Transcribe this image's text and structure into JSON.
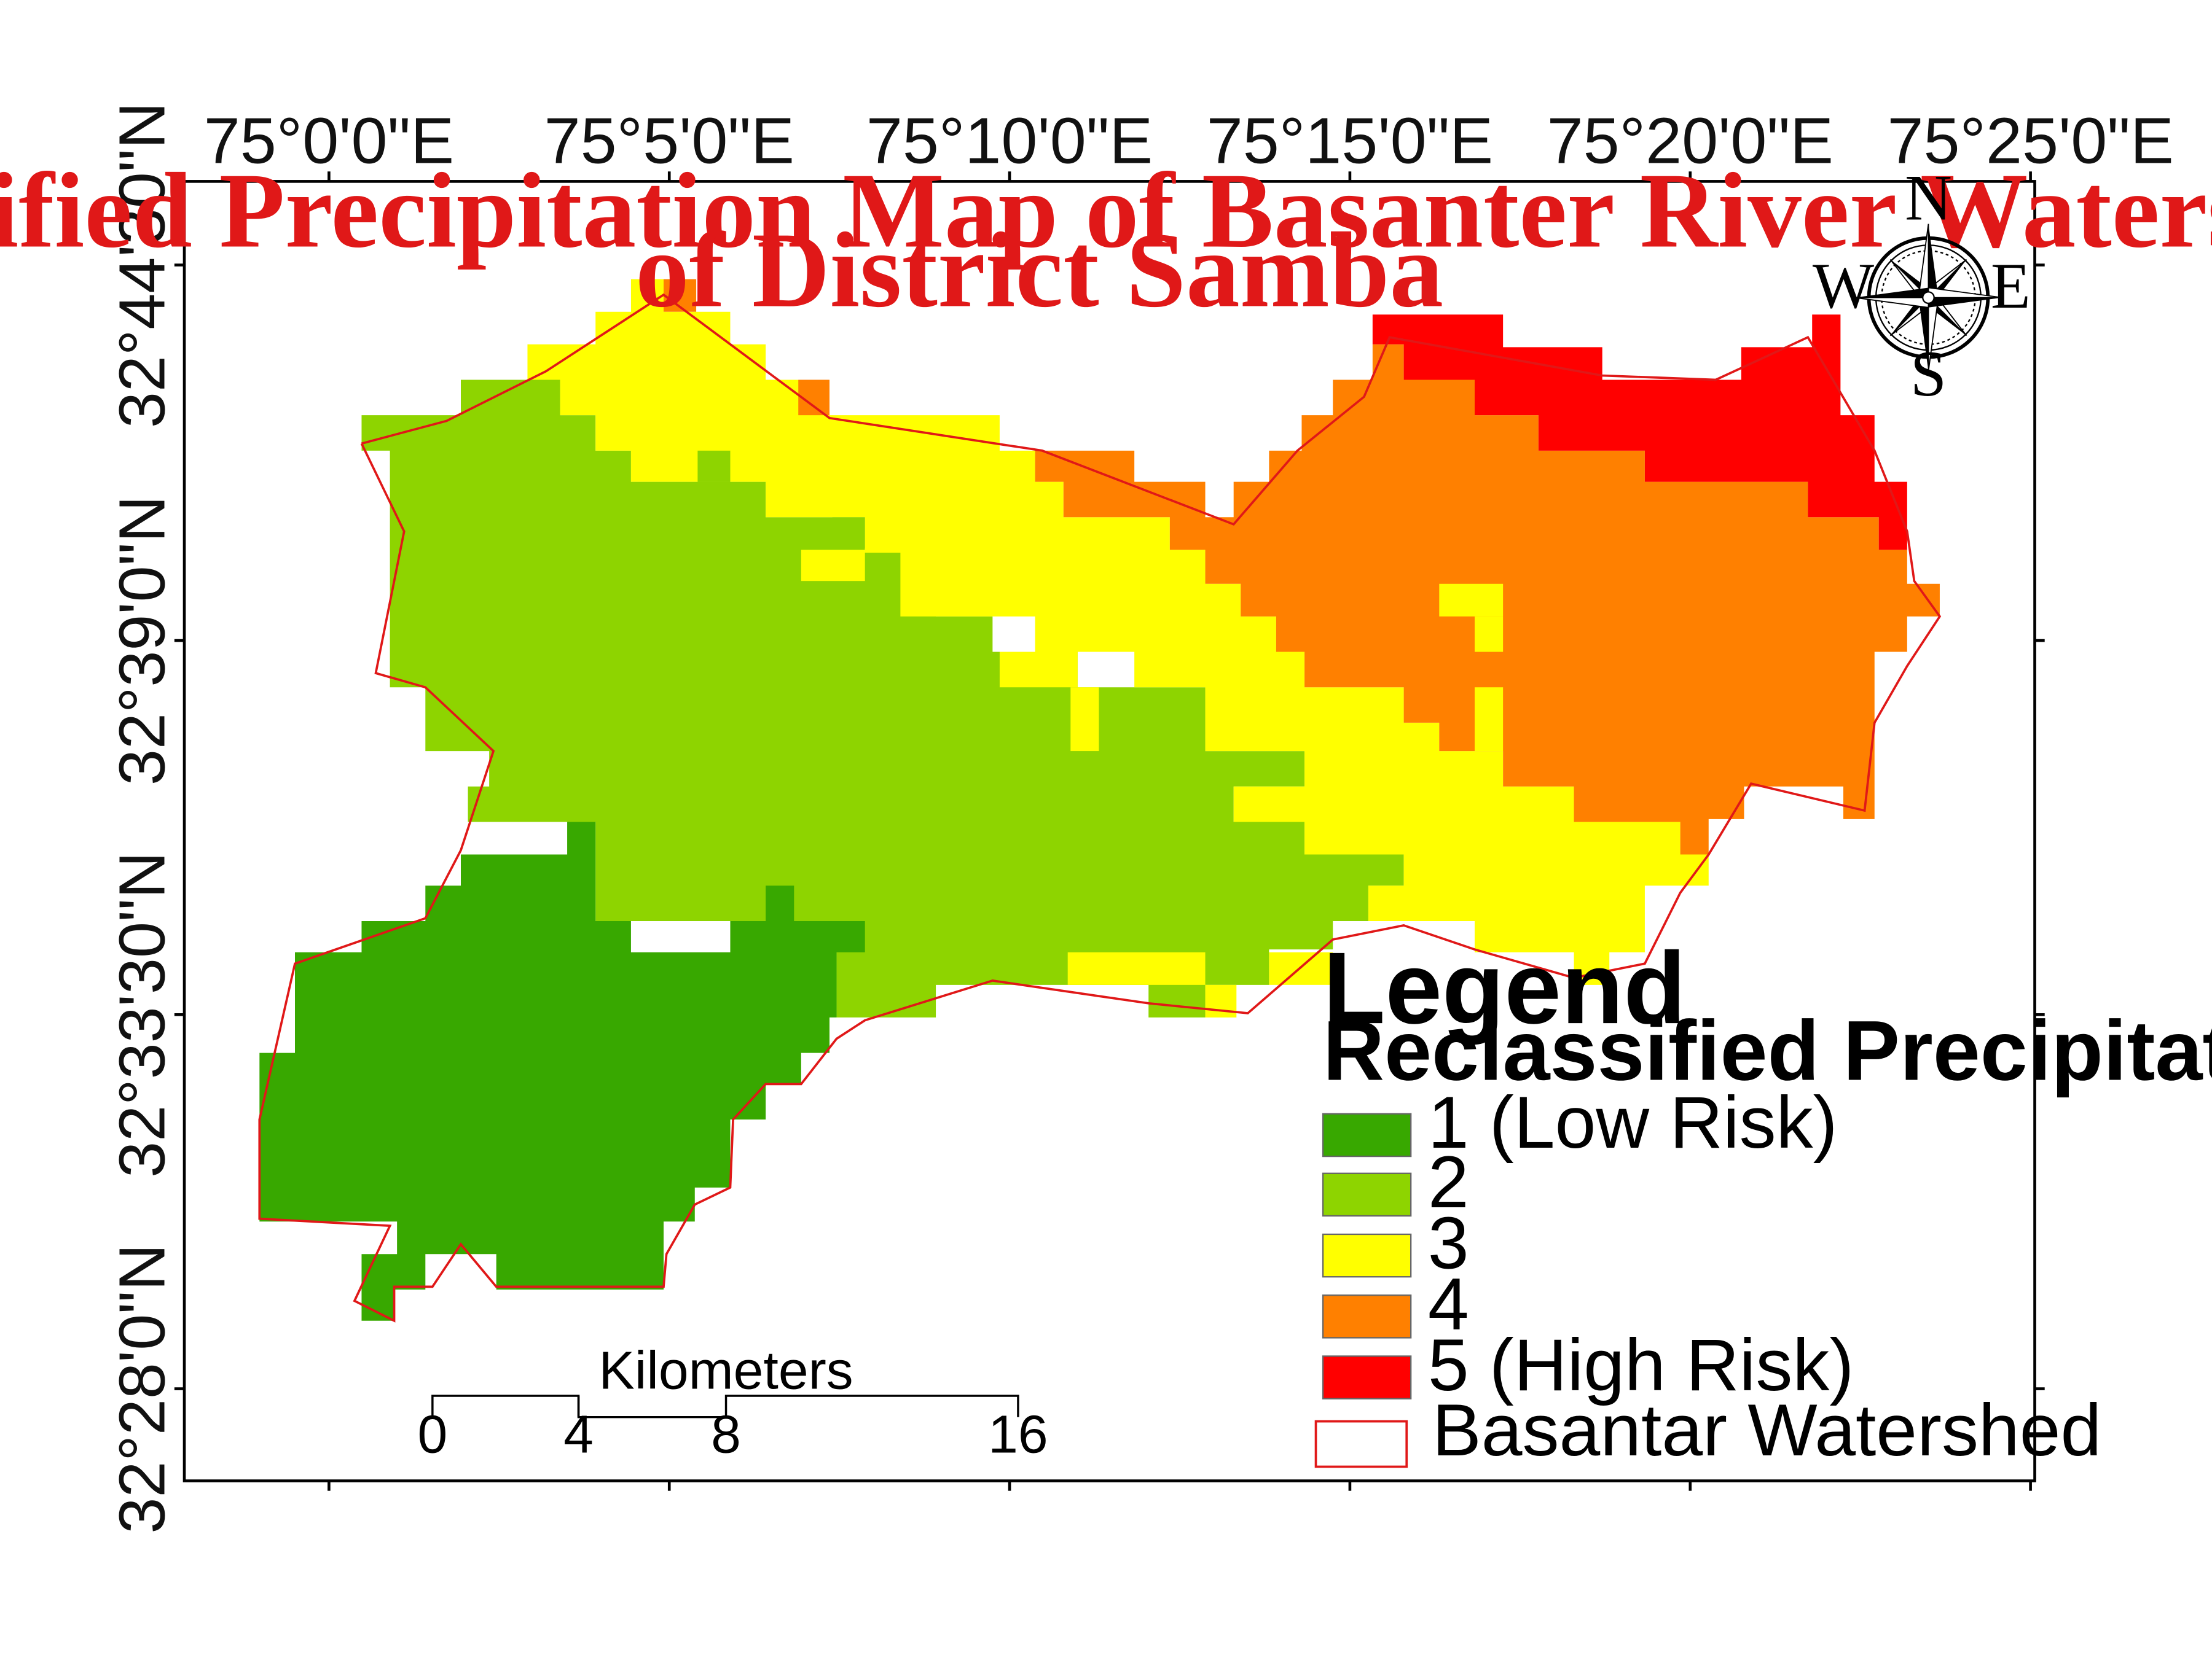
{
  "title": {
    "line1": "Reclassified Precipitation Map of Basanter River Watershed",
    "line2": "of District Samba"
  },
  "graticule": {
    "longitudes": [
      "75°0'0\"E",
      "75°5'0\"E",
      "75°10'0\"E",
      "75°15'0\"E",
      "75°20'0\"E",
      "75°25'0\"E"
    ],
    "latitudes": [
      "32°44'30\"N",
      "32°39'0\"N",
      "32°33'30\"N",
      "32°28'0\"N"
    ]
  },
  "compass": {
    "north": "N",
    "south": "S",
    "east": "E",
    "west": "W"
  },
  "scale_bar": {
    "unit": "Kilometers",
    "ticks": [
      "0",
      "4",
      "8",
      "16"
    ]
  },
  "legend": {
    "title": "Legend",
    "subtitle": "Reclassified Precipitation (mm)",
    "classes": [
      {
        "label": "1 (Low Risk)",
        "color": "#38a800"
      },
      {
        "label": "2",
        "color": "#8ed400"
      },
      {
        "label": "3",
        "color": "#ffff00"
      },
      {
        "label": "4",
        "color": "#ff8000"
      },
      {
        "label": "5 (High Risk)",
        "color": "#ff0000"
      }
    ],
    "boundary": {
      "label": "Basantar Watershed",
      "color": "#e01818"
    }
  }
}
